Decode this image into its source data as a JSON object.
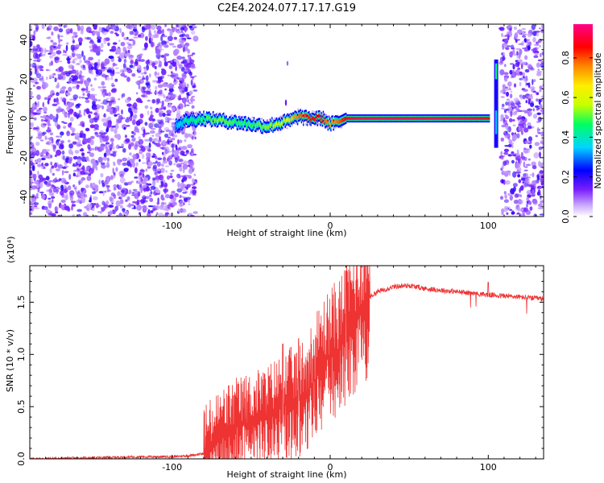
{
  "figure_title": "C2E4.2024.077.17.17.G19",
  "chart_data": [
    {
      "type": "heatmap",
      "title": "C2E4.2024.077.17.17.G19",
      "xlabel": "Height of straight line (km)",
      "ylabel": "Frequency (Hz)",
      "xlim": [
        -190,
        135
      ],
      "ylim": [
        -50,
        48
      ],
      "xticks": [
        -100,
        0,
        100
      ],
      "xtick_labels": [
        "-100",
        "0",
        "100"
      ],
      "yticks": [
        -40,
        -20,
        0,
        20,
        40
      ],
      "ytick_labels": [
        "-40",
        "-20",
        "0",
        "20",
        "40"
      ],
      "colorbar": {
        "label": "Normalized spectral amplitude",
        "range": [
          0,
          0.97
        ],
        "ticks": [
          0.0,
          0.2,
          0.4,
          0.6,
          0.8
        ],
        "tick_labels": [
          "0.0",
          "0.2",
          "0.4",
          "0.6",
          "0.8"
        ],
        "colors": [
          "#ffffff",
          "#c9a6ff",
          "#7a1fff",
          "#0000ff",
          "#00d5ff",
          "#00ff60",
          "#c8ff00",
          "#ffee00",
          "#ff8800",
          "#ff0000",
          "#ff0088"
        ]
      },
      "signal_track": {
        "x": [
          -100,
          -90,
          -80,
          -70,
          -60,
          -50,
          -40,
          -30,
          -25,
          -20,
          -15,
          -10,
          -5,
          0,
          5,
          10,
          20,
          40,
          60,
          80,
          100
        ],
        "frequency": [
          -4,
          -1,
          0,
          -1,
          -2,
          -3,
          -4,
          -2,
          -1,
          1,
          0,
          0,
          0,
          -3,
          -2,
          0,
          0,
          0,
          0,
          0,
          0
        ],
        "amplitude": [
          0.3,
          0.45,
          0.5,
          0.55,
          0.5,
          0.5,
          0.55,
          0.6,
          0.7,
          0.8,
          0.85,
          0.9,
          0.85,
          0.75,
          0.8,
          0.9,
          0.95,
          0.95,
          0.95,
          0.95,
          0.9
        ]
      },
      "noise_regions": [
        [
          -190,
          -85
        ],
        [
          108,
          135
        ]
      ],
      "spike": {
        "x": 105,
        "frequency_range": [
          -15,
          30
        ]
      }
    },
    {
      "type": "line",
      "xlabel": "Height of straight line (km)",
      "ylabel": "SNR (10 * v/v)",
      "y_multiplier": "(x10⁴)",
      "xlim": [
        -190,
        135
      ],
      "ylim": [
        0,
        1.85
      ],
      "xticks": [
        -100,
        0,
        100
      ],
      "xtick_labels": [
        "-100",
        "0",
        "100"
      ],
      "yticks": [
        0.0,
        0.5,
        1.0,
        1.5
      ],
      "ytick_labels": [
        "0.0",
        "0.5",
        "1.0",
        "1.5"
      ],
      "color": "#ee3333",
      "series": [
        {
          "x": [
            -190,
            -150,
            -120,
            -100,
            -90,
            -80,
            -75,
            -70,
            -60,
            -50,
            -40,
            -30,
            -20,
            -15,
            -10,
            -5,
            0,
            5,
            10,
            15,
            20,
            25,
            30,
            40,
            50,
            60,
            80,
            100,
            120,
            135
          ],
          "values": [
            0.0,
            0.01,
            0.02,
            0.02,
            0.03,
            0.05,
            0.1,
            0.2,
            0.3,
            0.35,
            0.42,
            0.5,
            0.55,
            0.62,
            0.75,
            0.9,
            1.0,
            1.05,
            1.2,
            1.35,
            1.45,
            1.55,
            1.6,
            1.65,
            1.66,
            1.63,
            1.6,
            1.57,
            1.55,
            1.53
          ]
        }
      ],
      "spikes_x": [
        -30,
        -20,
        10,
        100
      ]
    }
  ]
}
